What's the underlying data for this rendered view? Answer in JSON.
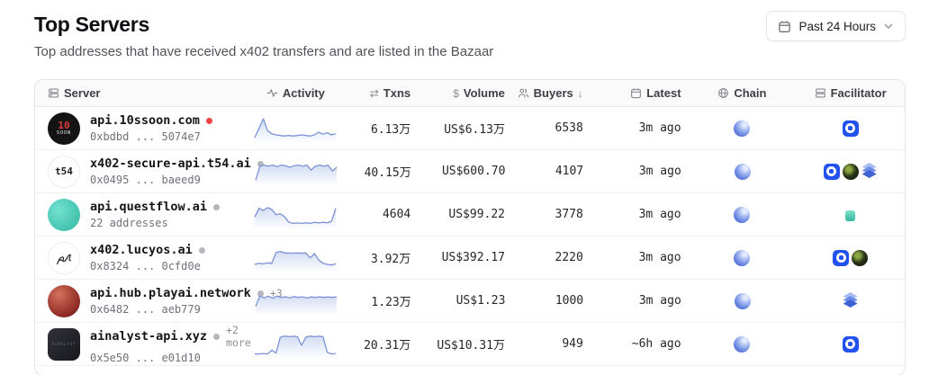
{
  "colors": {
    "accent_blue": "#2152f0",
    "spark_line": "#7b93d6",
    "spark_fill": "#cdd9f2",
    "status_online": "#ef4444",
    "status_idle": "#b6b6bd"
  },
  "header": {
    "title": "Top Servers",
    "subtitle": "Top addresses that have received x402 transfers and are listed in the Bazaar"
  },
  "time_filter": {
    "label": "Past 24 Hours",
    "icons": [
      "calendar-icon",
      "chevron-down-icon"
    ]
  },
  "table": {
    "columns": {
      "server": {
        "label": "Server",
        "icon": "server-icon"
      },
      "activity": {
        "label": "Activity",
        "icon": "activity-icon"
      },
      "txns": {
        "label": "Txns",
        "glyph": "⇄"
      },
      "volume": {
        "label": "Volume",
        "glyph": "$"
      },
      "buyers": {
        "label": "Buyers",
        "icon": "users-icon",
        "sort_glyph": "↓",
        "sort": "desc"
      },
      "latest": {
        "label": "Latest",
        "icon": "calendar-icon"
      },
      "chain": {
        "label": "Chain",
        "icon": "globe-icon"
      },
      "facilitator": {
        "label": "Facilitator",
        "icon": "stack-icon"
      }
    },
    "rows": [
      {
        "name": "api.10ssoon.com",
        "dot": "red",
        "extra": "",
        "subtext": "0xbdbd ... 5074e7",
        "txns": "6.13万",
        "volume": "US$6.13万",
        "buyers": "6538",
        "latest": "3m ago",
        "chain": [
          "blue-sphere"
        ],
        "facilitators": [
          "coinbase"
        ],
        "avatar": {
          "style": "10ssoon",
          "label": "10",
          "sublabel": "SOON"
        },
        "spark": [
          0.12,
          0.55,
          1.0,
          0.45,
          0.3,
          0.25,
          0.22,
          0.2,
          0.22,
          0.2,
          0.22,
          0.25,
          0.22,
          0.2,
          0.25,
          0.38,
          0.28,
          0.35,
          0.25,
          0.3
        ]
      },
      {
        "name": "x402-secure-api.t54.ai",
        "dot": "gray",
        "extra": "",
        "subtext": "0x0495 ... baeed9",
        "txns": "40.15万",
        "volume": "US$600.70",
        "buyers": "4107",
        "latest": "3m ago",
        "chain": [
          "blue-sphere"
        ],
        "facilitators": [
          "coinbase",
          "green-orb",
          "layers"
        ],
        "avatar": {
          "style": "t54",
          "label": "t54",
          "sublabel": ""
        },
        "spark": [
          0.15,
          0.8,
          0.85,
          0.8,
          0.85,
          0.78,
          0.85,
          0.82,
          0.75,
          0.82,
          0.85,
          0.8,
          0.85,
          0.62,
          0.8,
          0.85,
          0.8,
          0.85,
          0.58,
          0.75
        ]
      },
      {
        "name": "api.questflow.ai",
        "dot": "gray",
        "extra": "",
        "subtext": "22 addresses",
        "txns": "4604",
        "volume": "US$99.22",
        "buyers": "3778",
        "latest": "3m ago",
        "chain": [
          "blue-sphere"
        ],
        "facilitators": [
          "teal"
        ],
        "avatar": {
          "style": "questflow",
          "label": "",
          "sublabel": ""
        },
        "spark": [
          0.45,
          0.85,
          0.75,
          0.88,
          0.8,
          0.55,
          0.6,
          0.45,
          0.2,
          0.15,
          0.17,
          0.15,
          0.18,
          0.15,
          0.2,
          0.17,
          0.2,
          0.18,
          0.25,
          0.85
        ]
      },
      {
        "name": "x402.lucyos.ai",
        "dot": "gray",
        "extra": "",
        "subtext": "0x8324 ... 0cfd0e",
        "txns": "3.92万",
        "volume": "US$392.17",
        "buyers": "2220",
        "latest": "3m ago",
        "chain": [
          "blue-sphere"
        ],
        "facilitators": [
          "coinbase",
          "green-orb"
        ],
        "avatar": {
          "style": "lucyos",
          "label": "",
          "sublabel": ""
        },
        "spark": [
          0.25,
          0.3,
          0.27,
          0.32,
          0.3,
          0.8,
          0.85,
          0.78,
          0.78,
          0.77,
          0.78,
          0.77,
          0.78,
          0.55,
          0.75,
          0.45,
          0.3,
          0.25,
          0.22,
          0.28
        ]
      },
      {
        "name": "api.hub.playai.network",
        "dot": "gray",
        "extra": "+3",
        "subtext": "0x6482 ... aeb779",
        "txns": "1.23万",
        "volume": "US$1.23",
        "buyers": "1000",
        "latest": "3m ago",
        "chain": [
          "blue-sphere"
        ],
        "facilitators": [
          "layers"
        ],
        "avatar": {
          "style": "playai",
          "label": "",
          "sublabel": ""
        },
        "spark": [
          0.3,
          0.8,
          0.7,
          0.78,
          0.68,
          0.78,
          0.72,
          0.75,
          0.7,
          0.76,
          0.72,
          0.75,
          0.7,
          0.74,
          0.72,
          0.75,
          0.72,
          0.74,
          0.72,
          0.74
        ]
      },
      {
        "name": "ainalyst-api.xyz",
        "dot": "gray",
        "extra": "+2 more",
        "subtext": "0x5e50 ... e01d10",
        "txns": "20.31万",
        "volume": "US$10.31万",
        "buyers": "949",
        "latest": "~6h ago",
        "chain": [
          "blue-sphere"
        ],
        "facilitators": [
          "coinbase"
        ],
        "avatar": {
          "style": "ainalyst",
          "label": "",
          "sublabel": "AINALYST"
        },
        "spark": [
          0.1,
          0.1,
          0.12,
          0.1,
          0.28,
          0.14,
          0.88,
          0.93,
          0.9,
          0.92,
          0.9,
          0.5,
          0.88,
          0.93,
          0.9,
          0.92,
          0.9,
          0.18,
          0.1,
          0.12
        ]
      }
    ]
  }
}
